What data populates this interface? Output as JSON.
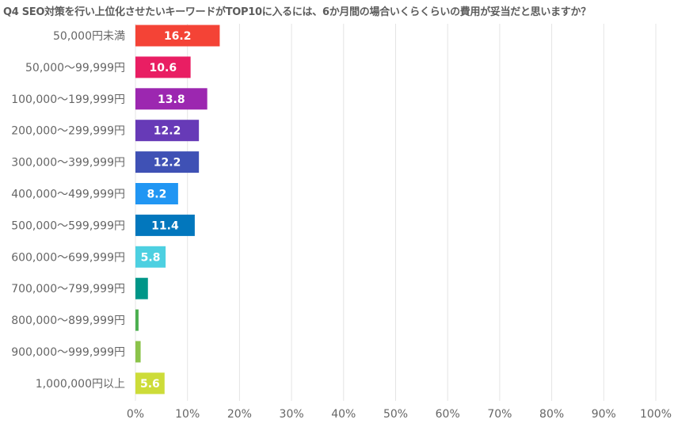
{
  "chart_data": {
    "type": "bar",
    "orientation": "horizontal",
    "title": "Q4 SEO対策を行い上位化させたいキーワードがTOP10に入るには、6か月間の場合いくらくらいの費用が妥当だと思いますか？",
    "xlabel": "",
    "ylabel": "",
    "xlim": [
      0,
      100
    ],
    "grid": true,
    "categories": [
      "50,000円未満",
      "50,000〜99,999円",
      "100,000〜199,999円",
      "200,000〜299,999円",
      "300,000〜399,999円",
      "400,000〜499,999円",
      "500,000〜599,999円",
      "600,000〜699,999円",
      "700,000〜799,999円",
      "800,000〜899,999円",
      "900,000〜999,999円",
      "1,000,000円以上"
    ],
    "values": [
      16.2,
      10.6,
      13.8,
      12.2,
      12.2,
      8.2,
      11.4,
      5.8,
      2.4,
      0.6,
      1.0,
      5.6
    ],
    "data_labels": [
      "16.2",
      "10.6",
      "13.8",
      "12.2",
      "12.2",
      "8.2",
      "11.4",
      "5.8",
      "",
      "",
      "",
      "5.6"
    ],
    "colors": [
      "#f44336",
      "#e91e63",
      "#9c27b0",
      "#673ab7",
      "#3f51b5",
      "#2196f3",
      "#0277bd",
      "#4dd0e1",
      "#009688",
      "#4caf50",
      "#8bc34a",
      "#cddc39"
    ],
    "x_ticks": [
      0,
      10,
      20,
      30,
      40,
      50,
      60,
      70,
      80,
      90,
      100
    ],
    "x_tick_labels": [
      "0%",
      "10%",
      "20%",
      "30%",
      "40%",
      "50%",
      "60%",
      "70%",
      "80%",
      "90%",
      "100%"
    ]
  }
}
